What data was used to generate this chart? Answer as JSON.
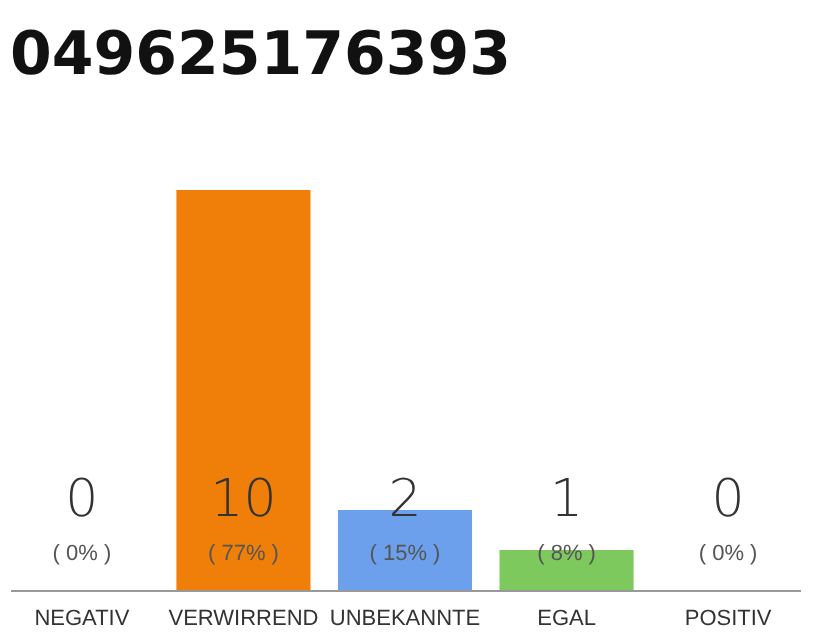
{
  "chart_data": {
    "type": "bar",
    "title": "049625176393",
    "categories": [
      "NEGATIV",
      "VERWIRREND",
      "UNBEKANNTE",
      "EGAL",
      "POSITIV"
    ],
    "values": [
      0,
      10,
      2,
      1,
      0
    ],
    "colors": [
      "#eeeeee",
      "#f07f09",
      "#6ca0ec",
      "#7dc95e",
      "#eeeeee"
    ],
    "ylim": [
      0,
      10
    ],
    "tick_labels": "x",
    "data_labels": true,
    "grid": false,
    "annotations": [
      "( 0% )",
      "( 77% )",
      "( 15% )",
      "( 8% )",
      "( 0% )"
    ]
  }
}
